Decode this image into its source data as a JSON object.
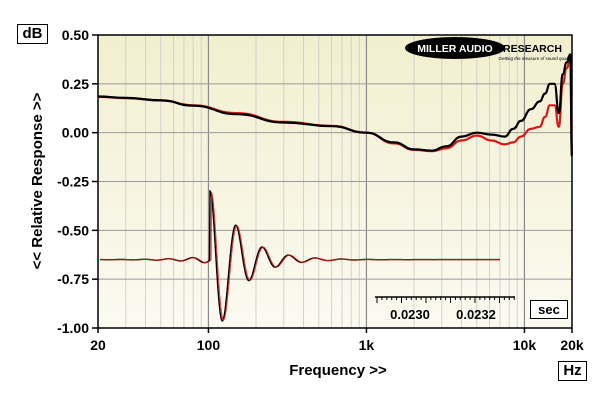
{
  "brand": {
    "name_part1": "MILLER AUDIO",
    "name_part2": "RESEARCH",
    "tagline": "Getting the measure of sound quality"
  },
  "chart_data": [
    {
      "type": "line",
      "title": "",
      "xlabel": "Frequency >>",
      "ylabel": "<< Relative Response >>",
      "x_unit": "Hz",
      "y_unit": "dB",
      "x_scale": "log",
      "xlim": [
        20,
        20000
      ],
      "ylim": [
        -1.0,
        0.5
      ],
      "x_ticks": [
        {
          "value": 20,
          "label": "20"
        },
        {
          "value": 100,
          "label": "100"
        },
        {
          "value": 1000,
          "label": "1k"
        },
        {
          "value": 10000,
          "label": "10k"
        },
        {
          "value": 20000,
          "label": "20k"
        }
      ],
      "y_ticks": [
        {
          "value": 0.5,
          "label": "0.50"
        },
        {
          "value": 0.25,
          "label": "0.25"
        },
        {
          "value": 0.0,
          "label": "0.00"
        },
        {
          "value": -0.25,
          "label": "-0.25"
        },
        {
          "value": -0.5,
          "label": "-0.50"
        },
        {
          "value": -0.75,
          "label": "-0.75"
        },
        {
          "value": -1.0,
          "label": "-1.00"
        }
      ],
      "grid": true,
      "series": [
        {
          "color": "#d81818",
          "x": [
            20,
            30,
            50,
            80,
            150,
            300,
            600,
            1000,
            1500,
            2000,
            2600,
            3200,
            4000,
            5000,
            6200,
            7500,
            8500,
            9500,
            11000,
            12500,
            13500,
            14500,
            15500,
            16500,
            17500,
            18500,
            19500,
            20000
          ],
          "y": [
            0.183,
            0.177,
            0.165,
            0.14,
            0.1,
            0.055,
            0.035,
            0.0,
            -0.055,
            -0.088,
            -0.095,
            -0.08,
            -0.04,
            -0.015,
            -0.04,
            -0.06,
            -0.05,
            -0.02,
            0.02,
            0.03,
            0.08,
            0.14,
            0.14,
            0.03,
            0.25,
            0.33,
            0.38,
            -0.12
          ]
        },
        {
          "color": "#000000",
          "x": [
            20,
            30,
            50,
            80,
            150,
            300,
            600,
            1000,
            1500,
            2000,
            2600,
            3200,
            4000,
            5000,
            6200,
            7500,
            8500,
            9500,
            11000,
            12500,
            13500,
            14500,
            15500,
            16500,
            17500,
            18500,
            19500,
            20000
          ],
          "y": [
            0.185,
            0.178,
            0.165,
            0.138,
            0.095,
            0.052,
            0.033,
            0.0,
            -0.05,
            -0.085,
            -0.092,
            -0.07,
            -0.02,
            0.0,
            -0.01,
            -0.02,
            0.02,
            0.06,
            0.12,
            0.16,
            0.2,
            0.25,
            0.25,
            0.1,
            0.3,
            0.36,
            0.4,
            -0.12
          ]
        }
      ]
    },
    {
      "type": "line",
      "title": "",
      "description_inset": true,
      "x_unit": "sec",
      "x_ticks": [
        {
          "value": 0.023,
          "label": "0.0230"
        },
        {
          "value": 0.0232,
          "label": "0.0232"
        }
      ],
      "baseline": -0.65,
      "series": [
        {
          "color": "#000000"
        },
        {
          "color": "#d81818"
        }
      ]
    }
  ]
}
